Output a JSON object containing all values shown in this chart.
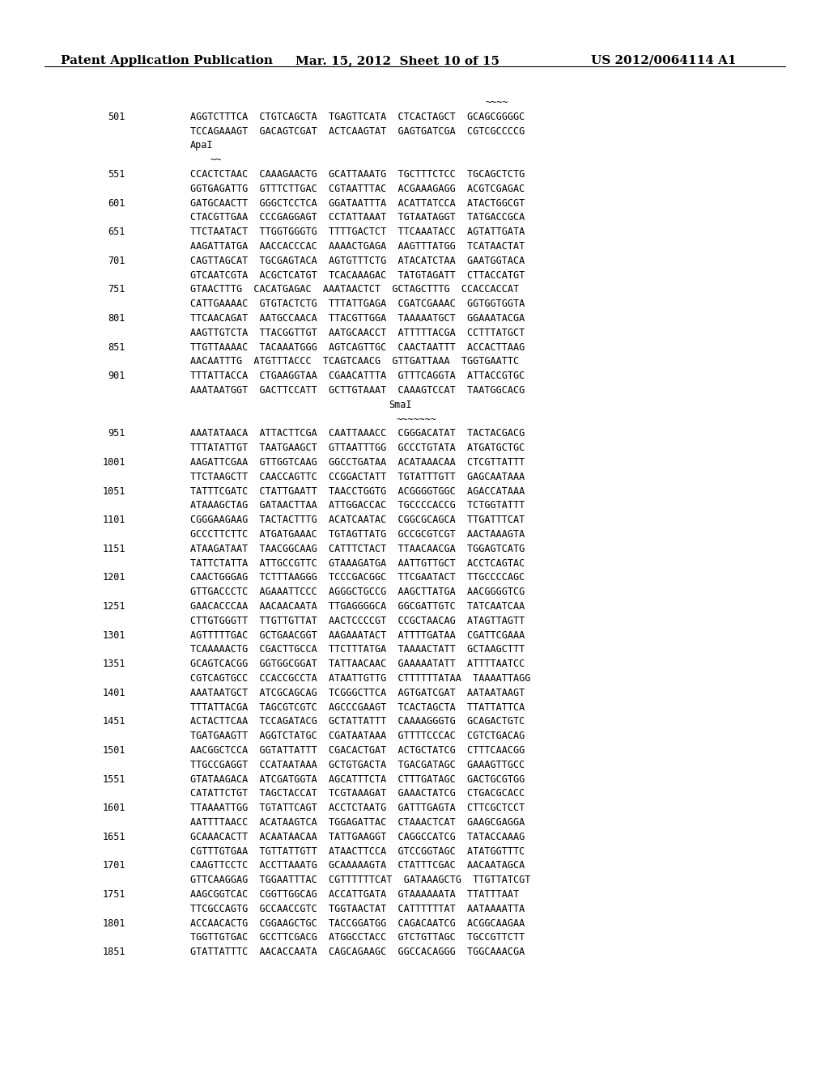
{
  "header_left": "Patent Application Publication",
  "header_mid": "Mar. 15, 2012  Sheet 10 of 15",
  "header_right": "US 2012/0064114 A1",
  "background_color": "#ffffff",
  "text_color": "#000000",
  "lines": [
    {
      "num": null,
      "text": "~~~~",
      "indent": 2,
      "style": "mono"
    },
    {
      "num": "501",
      "text": "AGGTCTTTCA  CTGTCAGCTA  TGAGTTCATA  CTCACTAGCT  GCAGCGGGGC",
      "indent": 1,
      "style": "mono"
    },
    {
      "num": null,
      "text": "TCCAGAAAGT  GACAGTCGAT  ACTCAAGTAT  GAGTGATCGA  CGTCGCCCCG",
      "indent": 1,
      "style": "mono"
    },
    {
      "num": null,
      "text": "ApaI",
      "indent": 1,
      "style": "mono"
    },
    {
      "num": null,
      "text": "~~",
      "indent": 1,
      "style": "mono"
    },
    {
      "num": "551",
      "text": "CCACTCTAAC  CAAAGAACTG  GCATTAAATG  TGCTTTCTCC  TGCAGCTCTG",
      "indent": 1,
      "style": "mono"
    },
    {
      "num": null,
      "text": "GGTGAGATTG  GTTTCTTGAC  CGTAATTTAC  ACGAAAGAGG  ACGTCGAGAC",
      "indent": 1,
      "style": "mono"
    },
    {
      "num": "601",
      "text": "GATGCAACTT  GGGCTCCTCA  GGATAATTTA  ACATTATCCA  ATACTGGCGT",
      "indent": 1,
      "style": "mono"
    },
    {
      "num": null,
      "text": "CTACGTTGAA  CCCGAGGAGT  CCTATTAAAT  TGTAATAGGT  TATGACCGCA",
      "indent": 1,
      "style": "mono"
    },
    {
      "num": "651",
      "text": "TTCTAATACT  TTGGTGGGTG  TTTTGACTCT  TTCAAATACC  AGTATTGATA",
      "indent": 1,
      "style": "mono"
    },
    {
      "num": null,
      "text": "AAGATTATGA  AACCACCCAC  AAAACTGAGA  AAGTTTATGG  TCATAACTAT",
      "indent": 1,
      "style": "mono"
    },
    {
      "num": "701",
      "text": "CAGTTAGCAT  TGCGAGTACA  AGTGTTTCTG  ATACATCTAA  GAATGGTACA",
      "indent": 1,
      "style": "mono"
    },
    {
      "num": null,
      "text": "GTCAATCGTA  ACGCTCATGT  TCACAAAGAC  TATGTAGATT  CTTACCATGT",
      "indent": 1,
      "style": "mono"
    },
    {
      "num": "751",
      "text": "GTAACTTTG  CACATGAGAC  AAATAACTCT  GCTAGCTTTG  CCACCACCAT",
      "indent": 1,
      "style": "mono"
    },
    {
      "num": null,
      "text": "CATTGAAAAC  GTGTACTCTG  TTTATTGAGA  CGATCGAAAC  GGTGGTGGTA",
      "indent": 1,
      "style": "mono"
    },
    {
      "num": "801",
      "text": "TTCAACAGAT  AATGCCAACA  TTACGTTGGA  TAAAAATGCT  GGAAATACGA",
      "indent": 1,
      "style": "mono"
    },
    {
      "num": null,
      "text": "AAGTTGTCTA  TTACGGTTGT  AATGCAACCT  ATTTTTACGA  CCTTTATGCT",
      "indent": 1,
      "style": "mono"
    },
    {
      "num": "851",
      "text": "TTGTTAAAAC  TACAAATGGG  AGTCAGTTGC  CAACTAATTT  ACCACTTAAG",
      "indent": 1,
      "style": "mono"
    },
    {
      "num": null,
      "text": "AACAATTTG  ATGTTTACCC  TCAGTCAACG  GTTGATTAAA  TGGTGAATTC",
      "indent": 1,
      "style": "mono"
    },
    {
      "num": "901",
      "text": "TTTATTACCA  CTGAAGGTAA  CGAACATTTA  GTTTCAGGTA  ATTACCGTGC",
      "indent": 1,
      "style": "mono"
    },
    {
      "num": null,
      "text": "AAATAATGGT  GACTTCCATT  GCTTGTAAAT  CAAAGTCCAT  TAATGGCACG",
      "indent": 1,
      "style": "mono"
    },
    {
      "num": null,
      "text": "SmaI",
      "indent": 2,
      "style": "mono"
    },
    {
      "num": null,
      "text": "~~~~~~~",
      "indent": 2,
      "style": "mono"
    },
    {
      "num": "951",
      "text": "AAATATAACA  ATTACTTCGA  CAATTAAACC  CGGGACATAT  TACTACGACG",
      "indent": 1,
      "style": "mono"
    },
    {
      "num": null,
      "text": "TTTATATTGT  TAATGAAGCT  GTTAATTTGG  GCCCTGTATA  ATGATGCTGC",
      "indent": 1,
      "style": "mono"
    },
    {
      "num": "1001",
      "text": "AAGATTCGAA  GTTGGTCAAG  GGCCTGATAA  ACATAAACAA  CTCGTTATTT",
      "indent": 1,
      "style": "mono"
    },
    {
      "num": null,
      "text": "TTCTAAGCTT  CAACCAGTTC  CCGGACTATT  TGTATTTGTT  GAGCAATAAA",
      "indent": 1,
      "style": "mono"
    },
    {
      "num": "1051",
      "text": "TATTTCGATC  CTATTGAATT  TAACCTGGTG  ACGGGGTGGC  AGACCATAAA",
      "indent": 1,
      "style": "mono"
    },
    {
      "num": null,
      "text": "ATAAAGCTAG  GATAACTTAA  ATTGGACCAC  TGCCCCACCG  TCTGGTATTT",
      "indent": 1,
      "style": "mono"
    },
    {
      "num": "1101",
      "text": "CGGGAAGAAG  TACTACTTTG  ACATCAATAC  CGGCGCAGCA  TTGATTTCAT",
      "indent": 1,
      "style": "mono"
    },
    {
      "num": null,
      "text": "GCCCTTCTTC  ATGATGAAAC  TGTAGTTATG  GCCGCGTCGT  AACTAAAGTA",
      "indent": 1,
      "style": "mono"
    },
    {
      "num": "1151",
      "text": "ATAAGATAAT  TAACGGCAAG  CATTTCTACT  TTAACAACGA  TGGAGTCATG",
      "indent": 1,
      "style": "mono"
    },
    {
      "num": null,
      "text": "TATTCTATTA  ATTGCCGTTC  GTAAAGATGA  AATTGTTGCT  ACCTCAGTAC",
      "indent": 1,
      "style": "mono"
    },
    {
      "num": "1201",
      "text": "CAACTGGGAG  TCTTTAAGGG  TCCCGACGGC  TTCGAATACT  TTGCCCCAGC",
      "indent": 1,
      "style": "mono"
    },
    {
      "num": null,
      "text": "GTTGACCCTC  AGAAATTCCC  AGGGCTGCCG  AAGCTTATGA  AACGGGGTCG",
      "indent": 1,
      "style": "mono"
    },
    {
      "num": "1251",
      "text": "GAACACCCAA  AACAACAATA  TTGAGGGGCA  GGCGATTGTC  TATCAATCAA",
      "indent": 1,
      "style": "mono"
    },
    {
      "num": null,
      "text": "CTTGTGGGTT  TTGTTGTTAT  AACTCCCCGT  CCGCTAACAG  ATAGTTAGTT",
      "indent": 1,
      "style": "mono"
    },
    {
      "num": "1301",
      "text": "AGTTTTTGAC  GCTGAACGGT  AAGAAATACT  ATTTTGATAA  CGATTCGAAA",
      "indent": 1,
      "style": "mono"
    },
    {
      "num": null,
      "text": "TCAAAAACTG  CGACTTGCCA  TTCTTTATGA  TAAAACTATT  GCTAAGCTTT",
      "indent": 1,
      "style": "mono"
    },
    {
      "num": "1351",
      "text": "GCAGTCACGG  GGTGGCGGAT  TATTAACAAC  GAAAAATATT  ATTTTAATCC",
      "indent": 1,
      "style": "mono"
    },
    {
      "num": null,
      "text": "CGTCAGTGCC  CCACCGCCTA  ATAATTGTTG  CTTTTTTATAA  TAAAATTAGG",
      "indent": 1,
      "style": "mono"
    },
    {
      "num": "1401",
      "text": "AAATAATGCT  ATCGCAGCAG  TCGGGCTTCA  AGTGATCGAT  AATAATAAGT",
      "indent": 1,
      "style": "mono"
    },
    {
      "num": null,
      "text": "TTTATTACGA  TAGCGTCGTC  AGCCCGAAGT  TCACTAGCTA  TTATTATTCA",
      "indent": 1,
      "style": "mono"
    },
    {
      "num": "1451",
      "text": "ACTACTTCAA  TCCAGATACG  GCTATTATTT  CAAAAGGGTG  GCAGACTGTC",
      "indent": 1,
      "style": "mono"
    },
    {
      "num": null,
      "text": "TGATGAAGTT  AGGTCTATGC  CGATAATAAA  GTTTTCCCAC  CGTCTGACAG",
      "indent": 1,
      "style": "mono"
    },
    {
      "num": "1501",
      "text": "AACGGCTCCA  GGTATTATTT  CGACACTGAT  ACTGCTATCG  CTTTCAACGG",
      "indent": 1,
      "style": "mono"
    },
    {
      "num": null,
      "text": "TTGCCGAGGT  CCATAATAAA  GCTGTGACTA  TGACGATAGC  GAAAGTTGCC",
      "indent": 1,
      "style": "mono"
    },
    {
      "num": "1551",
      "text": "GTATAAGACA  ATCGATGGTA  AGCATTTCTA  CTTTGATAGC  GACTGCGTGG",
      "indent": 1,
      "style": "mono"
    },
    {
      "num": null,
      "text": "CATATTCTGT  TAGCTACCAT  TCGTAAAGAT  GAAACTATCG  CTGACGCACC",
      "indent": 1,
      "style": "mono"
    },
    {
      "num": "1601",
      "text": "TTAAAATTGG  TGTATTCAGT  ACCTCTAATG  GATTTGAGTA  CTTCGCTCCT",
      "indent": 1,
      "style": "mono"
    },
    {
      "num": null,
      "text": "AATTTTAACC  ACATAAGTCA  TGGAGATTAC  CTAAACTCAT  GAAGCGAGGA",
      "indent": 1,
      "style": "mono"
    },
    {
      "num": "1651",
      "text": "GCAAACACTT  ACAATAACAA  TATTGAAGGT  CAGGCCATCG  TATACCAAAG",
      "indent": 1,
      "style": "mono"
    },
    {
      "num": null,
      "text": "CGTTTGTGAA  TGTTATTGTT  ATAACTTCCA  GTCCGGTAGC  ATATGGTTTC",
      "indent": 1,
      "style": "mono"
    },
    {
      "num": "1701",
      "text": "CAAGTTCCTC  ACCTTAAATG  GCAAAAAGTA  CTATTTCGAC  AACAATAGCA",
      "indent": 1,
      "style": "mono"
    },
    {
      "num": null,
      "text": "GTTCAAGGAG  TGGAATTTAC  CGTTTTTTCAT  GATAAAGCTG  TTGTTATCGT",
      "indent": 1,
      "style": "mono"
    },
    {
      "num": "1751",
      "text": "AAGCGGTCAC  CGGTTGGCAG  ACCATTGATA  GTAAAAAATA  TTATTTAAT",
      "indent": 1,
      "style": "mono"
    },
    {
      "num": null,
      "text": "TTCGCCAGTG  GCCAACCGTC  TGGTAACTAT  CATTTTTTAT  AATAAAATTA",
      "indent": 1,
      "style": "mono"
    },
    {
      "num": "1801",
      "text": "ACCAACACTG  CGGAAGCTGC  TACCGGATGG  CAGACAATCG  ACGGCAAGAA",
      "indent": 1,
      "style": "mono"
    },
    {
      "num": null,
      "text": "TGGTTGTGAC  GCCTTCGACG  ATGGCCTACC  GTCTGTTAGC  TGCCGTTCTT",
      "indent": 1,
      "style": "mono"
    },
    {
      "num": "1851",
      "text": "GTATTATTTC  AACACCAATA  CAGCAGAAGC  GGCCACAGGG  TGGCAAACGA",
      "indent": 1,
      "style": "mono"
    }
  ]
}
